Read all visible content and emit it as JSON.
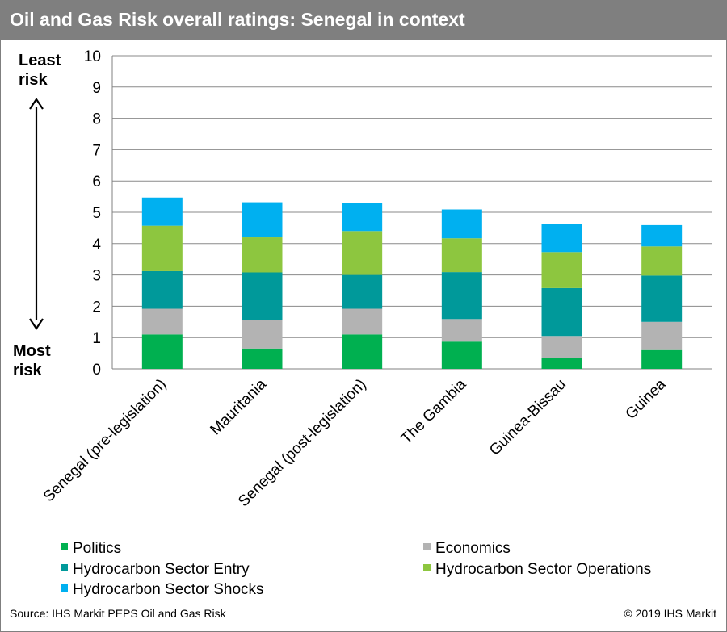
{
  "header": {
    "title": "Oil and Gas Risk overall ratings: Senegal in context"
  },
  "side_labels": {
    "top_line1": "Least",
    "top_line2": "risk",
    "bottom_line1": "Most",
    "bottom_line2": "risk"
  },
  "footer": {
    "source": "Source: IHS Markit PEPS Oil and Gas Risk",
    "copyright": "© 2019 IHS Markit"
  },
  "colors": {
    "Politics": "#00b050",
    "Economics": "#b3b3b3",
    "Hydrocarbon Sector Entry": "#00999a",
    "Hydrocarbon Sector Operations": "#8dc63f",
    "Hydrocarbon Sector Shocks": "#00b0f0"
  },
  "chart_data": {
    "type": "bar",
    "stacked": true,
    "categories": [
      "Senegal (pre-legislation)",
      "Mauritania",
      "Senegal (post-legislation)",
      "The Gambia",
      "Guinea-Bissau",
      "Guinea"
    ],
    "series": [
      {
        "name": "Politics",
        "values": [
          1.1,
          0.65,
          1.1,
          0.87,
          0.35,
          0.6
        ]
      },
      {
        "name": "Economics",
        "values": [
          0.82,
          0.9,
          0.82,
          0.72,
          0.7,
          0.9
        ]
      },
      {
        "name": "Hydrocarbon Sector Entry",
        "values": [
          1.2,
          1.53,
          1.08,
          1.5,
          1.53,
          1.48
        ]
      },
      {
        "name": "Hydrocarbon Sector Operations",
        "values": [
          1.45,
          1.12,
          1.4,
          1.08,
          1.15,
          0.93
        ]
      },
      {
        "name": "Hydrocarbon Sector Shocks",
        "values": [
          0.9,
          1.12,
          0.9,
          0.92,
          0.9,
          0.68
        ]
      }
    ],
    "yticks": [
      "0",
      "1",
      "2",
      "3",
      "4",
      "5",
      "6",
      "7",
      "8",
      "9",
      "10"
    ],
    "ylim": [
      0,
      10
    ],
    "grid": true,
    "legend_position": "bottom"
  }
}
